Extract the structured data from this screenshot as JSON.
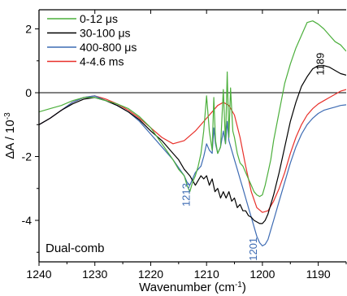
{
  "chart_data": {
    "type": "line",
    "xlabel": "Wavenumber (cm",
    "xlabel_sup": "-1",
    "xlabel_close": ")",
    "ylabel": "ΔA / 10",
    "ylabel_sup": "-3",
    "xlim": [
      1240,
      1185
    ],
    "ylim": [
      -5.3,
      2.6
    ],
    "x_reversed": true,
    "xticks": [
      1240,
      1230,
      1220,
      1210,
      1200,
      1190
    ],
    "yticks": [
      2,
      0,
      -2,
      -4
    ],
    "zero_line": true,
    "legend_position": "top-left",
    "inner_label": "Dual-comb",
    "annotations": [
      {
        "text": "1189",
        "x": 1189,
        "y": 0.9,
        "color": "#000000",
        "rotate": -90
      },
      {
        "text": "1213",
        "x": 1213,
        "y": -3.2,
        "color": "#3d6bb3",
        "rotate": -90
      },
      {
        "text": "1201",
        "x": 1201,
        "y": -4.9,
        "color": "#3d6bb3",
        "rotate": -90
      }
    ],
    "series": [
      {
        "name": "0-12 μs",
        "color": "#4caf3c",
        "x": [
          1240,
          1238,
          1236,
          1234,
          1232,
          1230,
          1228,
          1226,
          1224,
          1222,
          1220,
          1218,
          1216,
          1215,
          1214,
          1213.5,
          1213,
          1212.5,
          1212,
          1211.5,
          1211,
          1210.5,
          1210,
          1209.5,
          1209,
          1208.7,
          1208.4,
          1208,
          1207.5,
          1207,
          1206.6,
          1206.3,
          1206,
          1205.7,
          1205.3,
          1205,
          1204.5,
          1204,
          1203.5,
          1203,
          1202.5,
          1202,
          1201.5,
          1201,
          1200.5,
          1200,
          1199.5,
          1199,
          1198.5,
          1198,
          1197,
          1196,
          1195,
          1194,
          1193,
          1192,
          1191,
          1190,
          1189,
          1188,
          1187,
          1186,
          1185
        ],
        "y": [
          -0.6,
          -0.5,
          -0.4,
          -0.25,
          -0.15,
          -0.15,
          -0.25,
          -0.35,
          -0.5,
          -0.75,
          -1.1,
          -1.6,
          -2.1,
          -2.4,
          -2.6,
          -2.9,
          -3.1,
          -2.8,
          -2.6,
          -2.3,
          -1.9,
          -1.2,
          -0.1,
          -1.2,
          -1.8,
          -0.15,
          -1.5,
          -1.9,
          -1.7,
          0.1,
          -1.6,
          0.65,
          -1.4,
          0.15,
          -1.2,
          -1.4,
          -1.9,
          -2.2,
          -2.3,
          -2.5,
          -2.7,
          -2.9,
          -3.1,
          -3.2,
          -3.25,
          -3.2,
          -2.9,
          -2.5,
          -2.1,
          -1.5,
          -0.6,
          0.3,
          0.9,
          1.4,
          1.8,
          2.2,
          2.25,
          2.15,
          2.0,
          1.8,
          1.6,
          1.5,
          1.3
        ]
      },
      {
        "name": "30-100 μs",
        "color": "#000000",
        "x": [
          1240,
          1238,
          1236,
          1234,
          1232,
          1230,
          1228,
          1226,
          1224,
          1222,
          1220,
          1218,
          1216,
          1215,
          1214,
          1213,
          1212,
          1211,
          1210.5,
          1210,
          1209.5,
          1209,
          1208.5,
          1208,
          1207.5,
          1207,
          1206.5,
          1206,
          1205.5,
          1205,
          1204.5,
          1204,
          1203.5,
          1203,
          1202.5,
          1202,
          1201.5,
          1201,
          1200.5,
          1200,
          1199.5,
          1199,
          1198.5,
          1198,
          1197,
          1196,
          1195,
          1194,
          1193,
          1192,
          1191,
          1190,
          1189,
          1188,
          1187,
          1186,
          1185
        ],
        "y": [
          -1.0,
          -0.8,
          -0.55,
          -0.35,
          -0.2,
          -0.15,
          -0.25,
          -0.4,
          -0.6,
          -0.85,
          -1.2,
          -1.5,
          -1.9,
          -2.1,
          -2.4,
          -2.6,
          -2.9,
          -2.6,
          -2.7,
          -2.6,
          -2.9,
          -2.7,
          -3.1,
          -3.0,
          -3.3,
          -3.1,
          -3.3,
          -3.1,
          -3.4,
          -3.3,
          -3.6,
          -3.5,
          -3.7,
          -3.7,
          -3.85,
          -3.9,
          -4.0,
          -4.05,
          -4.1,
          -4.1,
          -4.0,
          -3.8,
          -3.5,
          -3.2,
          -2.5,
          -1.7,
          -0.9,
          -0.3,
          0.2,
          0.5,
          0.75,
          0.85,
          0.85,
          0.8,
          0.7,
          0.6,
          0.55
        ]
      },
      {
        "name": "400-800 μs",
        "color": "#3d6bb3",
        "x": [
          1240,
          1238,
          1236,
          1234,
          1232,
          1230,
          1228,
          1226,
          1224,
          1222,
          1220,
          1218,
          1216,
          1215,
          1214,
          1213.5,
          1213,
          1212.5,
          1212,
          1211,
          1210.5,
          1210,
          1209.5,
          1209,
          1208.7,
          1208.4,
          1208,
          1207.5,
          1207,
          1206.6,
          1206.3,
          1206,
          1205.5,
          1205,
          1204.5,
          1204,
          1203.5,
          1203,
          1202.5,
          1202,
          1201.5,
          1201,
          1200.5,
          1200,
          1199.5,
          1199,
          1198.5,
          1198,
          1197,
          1196,
          1195,
          1194,
          1193,
          1192,
          1191,
          1190,
          1189,
          1188,
          1187,
          1186,
          1185
        ],
        "y": [
          -1.0,
          -0.8,
          -0.55,
          -0.3,
          -0.15,
          -0.1,
          -0.25,
          -0.4,
          -0.6,
          -0.9,
          -1.3,
          -1.7,
          -2.1,
          -2.35,
          -2.6,
          -2.8,
          -2.9,
          -2.7,
          -2.5,
          -2.3,
          -2.0,
          -1.6,
          -1.8,
          -1.9,
          -1.1,
          -1.6,
          -1.9,
          -1.7,
          -1.2,
          -1.6,
          -0.9,
          -1.5,
          -1.8,
          -2.1,
          -2.4,
          -2.7,
          -3.0,
          -3.3,
          -3.6,
          -3.9,
          -4.2,
          -4.5,
          -4.7,
          -4.8,
          -4.75,
          -4.6,
          -4.3,
          -4.0,
          -3.4,
          -2.8,
          -2.2,
          -1.7,
          -1.3,
          -1.0,
          -0.8,
          -0.65,
          -0.55,
          -0.5,
          -0.45,
          -0.4,
          -0.38
        ]
      },
      {
        "name": "4-4.6 ms",
        "color": "#e8302a",
        "x": [
          1240,
          1238,
          1236,
          1234,
          1232,
          1230,
          1228,
          1226,
          1224,
          1222,
          1220,
          1218,
          1216,
          1214,
          1212,
          1210,
          1208,
          1207,
          1206,
          1205,
          1204,
          1203,
          1202,
          1201,
          1200,
          1199,
          1198,
          1197,
          1196,
          1195,
          1194,
          1193,
          1192,
          1191,
          1190,
          1189,
          1188,
          1187,
          1186,
          1185
        ],
        "y": [
          -1.0,
          -0.8,
          -0.55,
          -0.3,
          -0.15,
          -0.1,
          -0.2,
          -0.35,
          -0.55,
          -0.8,
          -1.1,
          -1.4,
          -1.6,
          -1.5,
          -1.2,
          -0.8,
          -0.4,
          -0.3,
          -0.4,
          -0.7,
          -1.4,
          -2.3,
          -3.1,
          -3.6,
          -3.75,
          -3.7,
          -3.4,
          -3.0,
          -2.5,
          -1.9,
          -1.4,
          -1.0,
          -0.7,
          -0.5,
          -0.35,
          -0.25,
          -0.15,
          -0.05,
          0.05,
          0.1
        ]
      }
    ]
  }
}
